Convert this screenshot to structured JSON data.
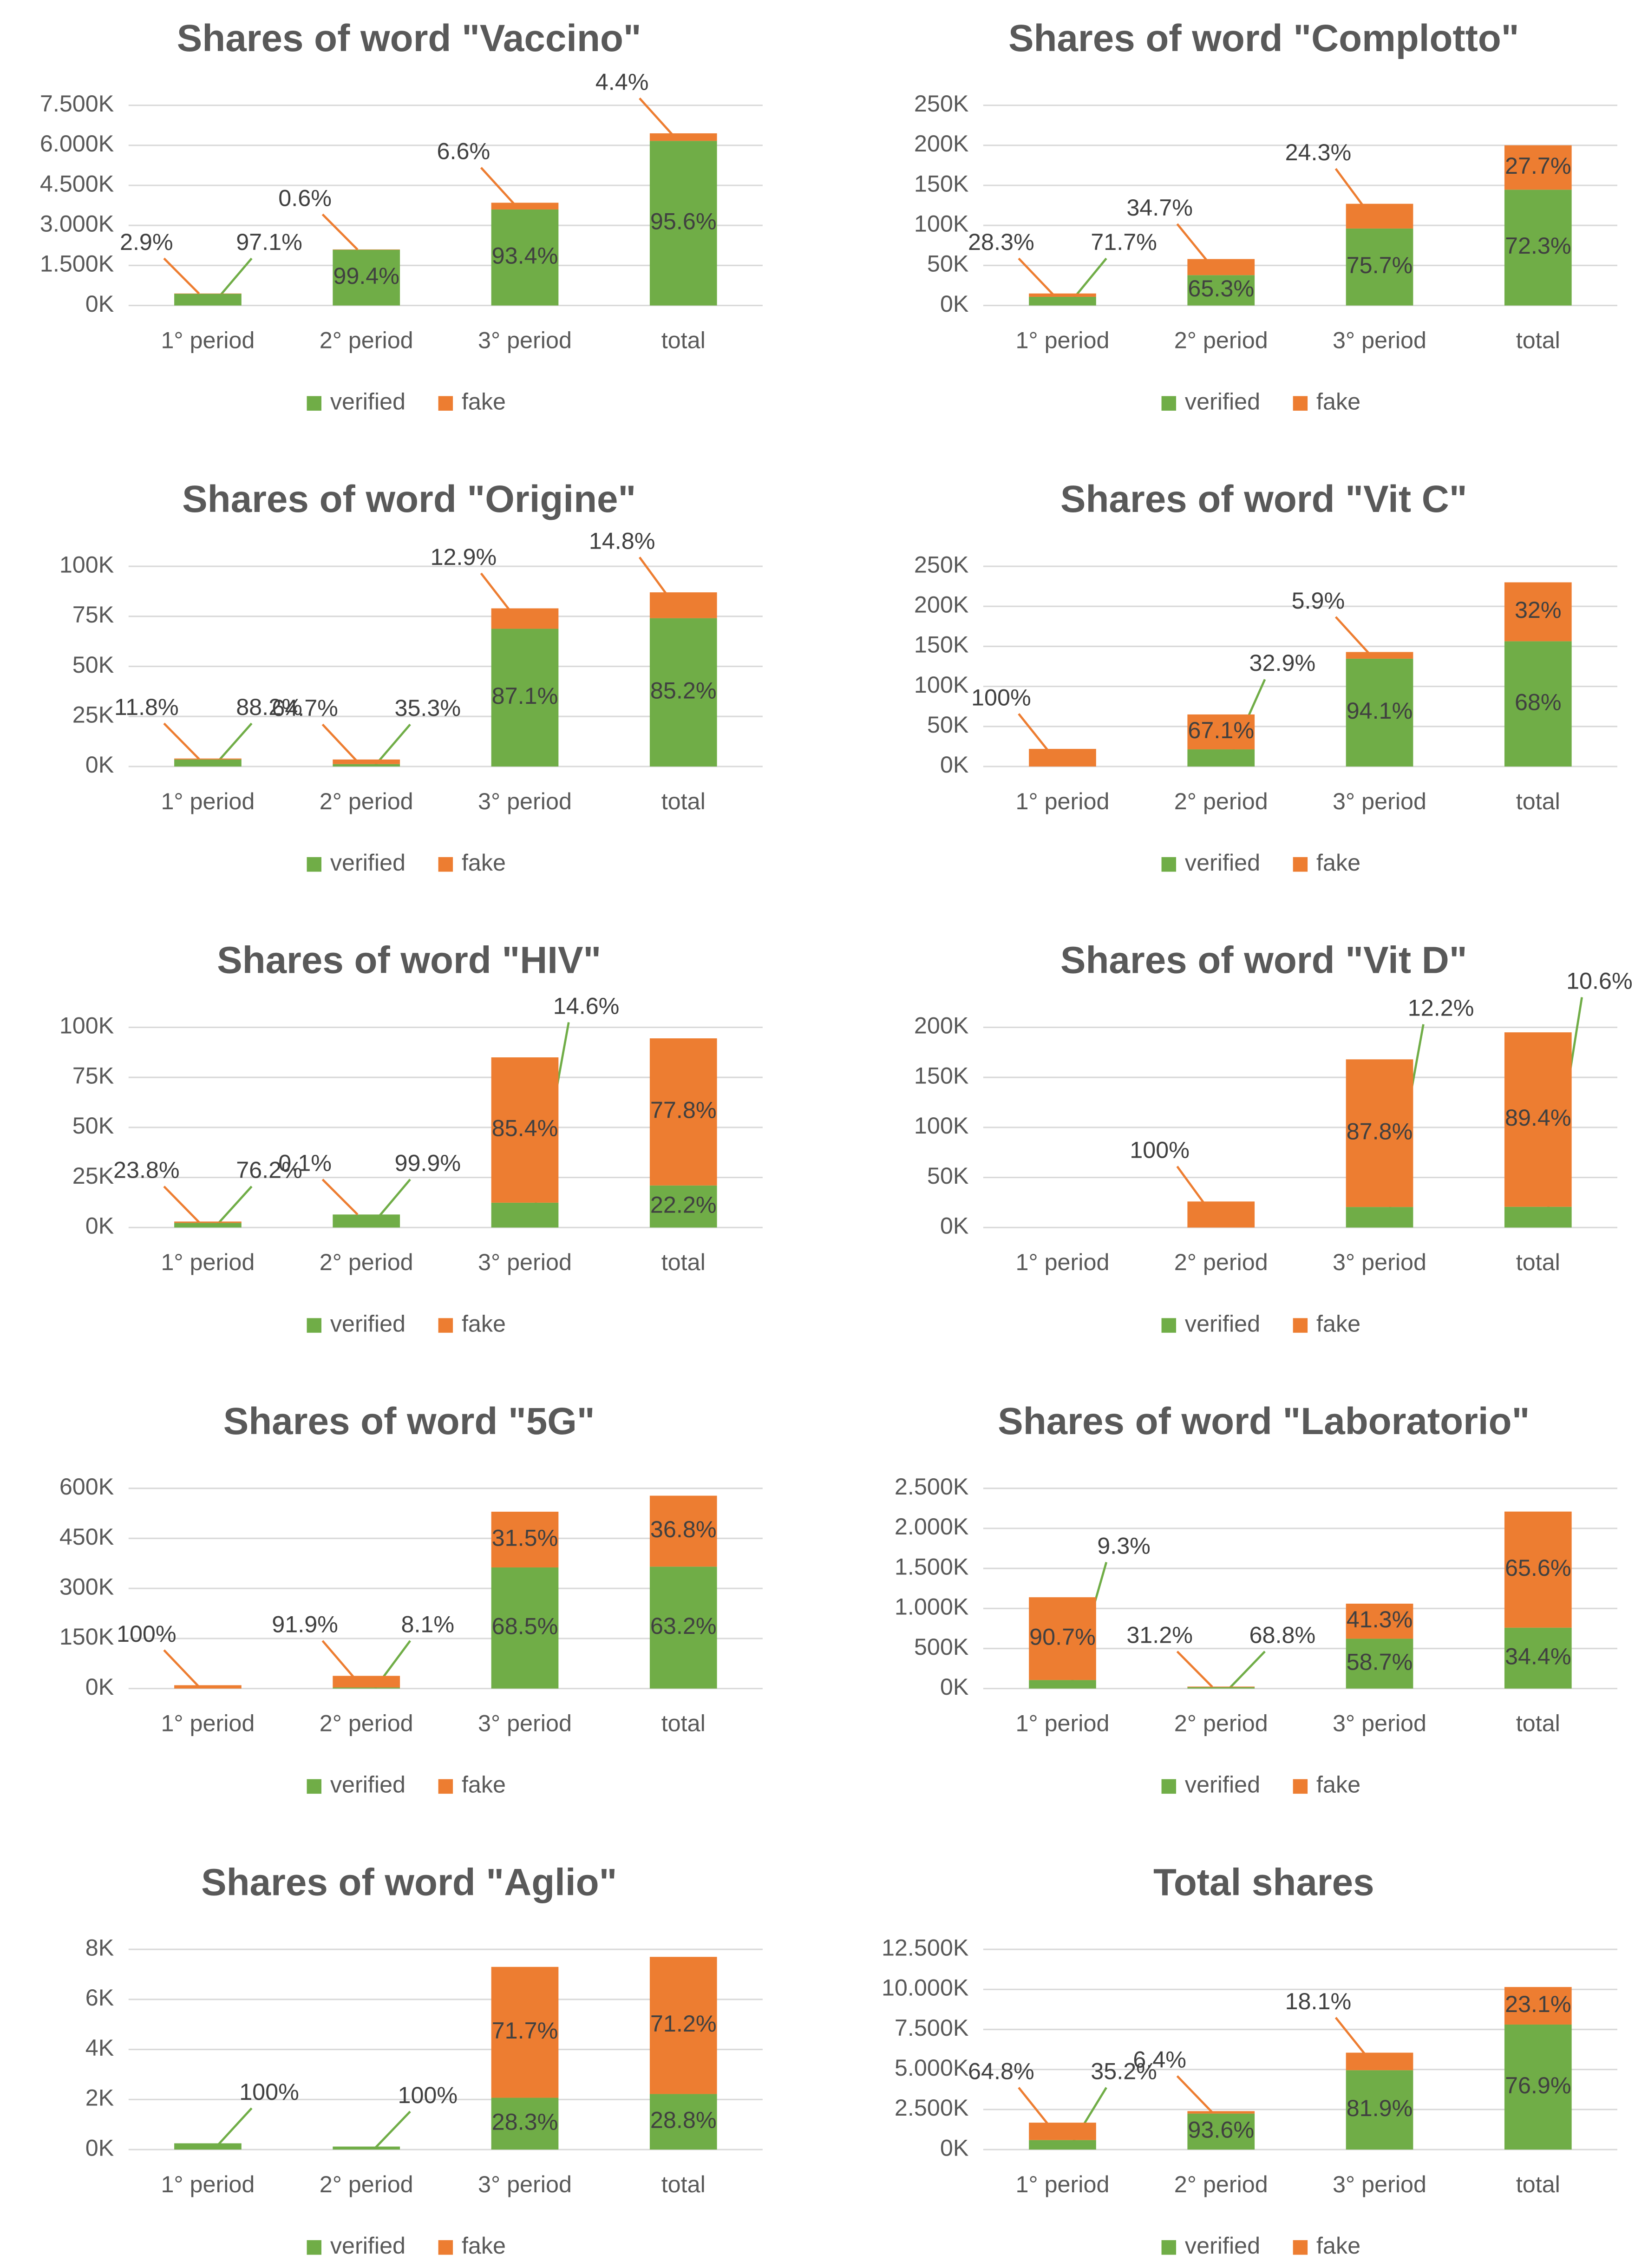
{
  "chart_data": [
    {
      "type": "bar",
      "stacked": true,
      "title": "Shares of word \"Vaccino\"",
      "categories": [
        "1° period",
        "2° period",
        "3° period",
        "total"
      ],
      "series": [
        {
          "name": "verified",
          "color": "#70ad47",
          "values": [
            437,
            2087,
            3596,
            6166
          ],
          "percent_labels": [
            "97.1%",
            "99.4%",
            "93.4%",
            "95.6%"
          ]
        },
        {
          "name": "fake",
          "color": "#ed7d31",
          "values": [
            13,
            13,
            254,
            284
          ],
          "percent_labels": [
            "2.9%",
            "0.6%",
            "6.6%",
            "4.4%"
          ]
        }
      ],
      "ylim": [
        0,
        7500
      ],
      "yticks": [
        {
          "value": 0,
          "label": "0K"
        },
        {
          "value": 1500,
          "label": "1.500K"
        },
        {
          "value": 3000,
          "label": "3.000K"
        },
        {
          "value": 4500,
          "label": "4.500K"
        },
        {
          "value": 6000,
          "label": "6.000K"
        },
        {
          "value": 7500,
          "label": "7.500K"
        }
      ],
      "grid": true,
      "legend": "bottom"
    },
    {
      "type": "bar",
      "stacked": true,
      "title": "Shares of word \"Complotto\"",
      "categories": [
        "1° period",
        "2° period",
        "3° period",
        "total"
      ],
      "series": [
        {
          "name": "verified",
          "color": "#70ad47",
          "values": [
            10.8,
            37.9,
            96.1,
            144.6
          ],
          "percent_labels": [
            "71.7%",
            "65.3%",
            "75.7%",
            "72.3%"
          ]
        },
        {
          "name": "fake",
          "color": "#ed7d31",
          "values": [
            4.2,
            20.1,
            30.9,
            55.4
          ],
          "percent_labels": [
            "28.3%",
            "34.7%",
            "24.3%",
            "27.7%"
          ]
        }
      ],
      "ylim": [
        0,
        250
      ],
      "yticks": [
        {
          "value": 0,
          "label": "0K"
        },
        {
          "value": 50,
          "label": "50K"
        },
        {
          "value": 100,
          "label": "100K"
        },
        {
          "value": 150,
          "label": "150K"
        },
        {
          "value": 200,
          "label": "200K"
        },
        {
          "value": 250,
          "label": "250K"
        }
      ],
      "grid": true,
      "legend": "bottom"
    },
    {
      "type": "bar",
      "stacked": true,
      "title": "Shares of word \"Origine\"",
      "categories": [
        "1° period",
        "2° period",
        "3° period",
        "total"
      ],
      "series": [
        {
          "name": "verified",
          "color": "#70ad47",
          "values": [
            3.5,
            1.2,
            68.8,
            74.1
          ],
          "percent_labels": [
            "88.2%",
            "35.3%",
            "87.1%",
            "85.2%"
          ]
        },
        {
          "name": "fake",
          "color": "#ed7d31",
          "values": [
            0.5,
            2.3,
            10.2,
            12.9
          ],
          "percent_labels": [
            "11.8%",
            "64.7%",
            "12.9%",
            "14.8%"
          ]
        }
      ],
      "ylim": [
        0,
        100
      ],
      "yticks": [
        {
          "value": 0,
          "label": "0K"
        },
        {
          "value": 25,
          "label": "25K"
        },
        {
          "value": 50,
          "label": "50K"
        },
        {
          "value": 75,
          "label": "75K"
        },
        {
          "value": 100,
          "label": "100K"
        }
      ],
      "grid": true,
      "legend": "bottom"
    },
    {
      "type": "bar",
      "stacked": true,
      "title": "Shares of word \"Vit C\"",
      "categories": [
        "1° period",
        "2° period",
        "3° period",
        "total"
      ],
      "series": [
        {
          "name": "verified",
          "color": "#70ad47",
          "values": [
            0,
            21.4,
            134.6,
            156.4
          ],
          "percent_labels": [
            null,
            "32.9%",
            "94.1%",
            "68%"
          ]
        },
        {
          "name": "fake",
          "color": "#ed7d31",
          "values": [
            22,
            43.6,
            8.4,
            73.6
          ],
          "percent_labels": [
            "100%",
            "67.1%",
            "5.9%",
            "32%"
          ]
        }
      ],
      "ylim": [
        0,
        250
      ],
      "yticks": [
        {
          "value": 0,
          "label": "0K"
        },
        {
          "value": 50,
          "label": "50K"
        },
        {
          "value": 100,
          "label": "100K"
        },
        {
          "value": 150,
          "label": "150K"
        },
        {
          "value": 200,
          "label": "200K"
        },
        {
          "value": 250,
          "label": "250K"
        }
      ],
      "grid": true,
      "legend": "bottom"
    },
    {
      "type": "bar",
      "stacked": true,
      "title": "Shares of word \"HIV\"",
      "categories": [
        "1° period",
        "2° period",
        "3° period",
        "total"
      ],
      "series": [
        {
          "name": "verified",
          "color": "#70ad47",
          "values": [
            2.3,
            6.5,
            12.4,
            21
          ],
          "percent_labels": [
            "76.2%",
            "99.9%",
            "14.6%",
            "22.2%"
          ]
        },
        {
          "name": "fake",
          "color": "#ed7d31",
          "values": [
            0.7,
            0.0065,
            72.6,
            73.5
          ],
          "percent_labels": [
            "23.8%",
            "0.1%",
            "85.4%",
            "77.8%"
          ]
        }
      ],
      "ylim": [
        0,
        100
      ],
      "yticks": [
        {
          "value": 0,
          "label": "0K"
        },
        {
          "value": 25,
          "label": "25K"
        },
        {
          "value": 50,
          "label": "50K"
        },
        {
          "value": 75,
          "label": "75K"
        },
        {
          "value": 100,
          "label": "100K"
        }
      ],
      "grid": true,
      "legend": "bottom"
    },
    {
      "type": "bar",
      "stacked": true,
      "title": "Shares of word \"Vit D\"",
      "categories": [
        "1° period",
        "2° period",
        "3° period",
        "total"
      ],
      "series": [
        {
          "name": "verified",
          "color": "#70ad47",
          "values": [
            0,
            0,
            20.5,
            20.7
          ],
          "percent_labels": [
            null,
            null,
            "12.2%",
            "10.6%"
          ]
        },
        {
          "name": "fake",
          "color": "#ed7d31",
          "values": [
            0,
            26,
            147.5,
            174.3
          ],
          "percent_labels": [
            null,
            "100%",
            "87.8%",
            "89.4%"
          ]
        }
      ],
      "ylim": [
        0,
        200
      ],
      "yticks": [
        {
          "value": 0,
          "label": "0K"
        },
        {
          "value": 50,
          "label": "50K"
        },
        {
          "value": 100,
          "label": "100K"
        },
        {
          "value": 150,
          "label": "150K"
        },
        {
          "value": 200,
          "label": "200K"
        }
      ],
      "grid": true,
      "legend": "bottom"
    },
    {
      "type": "bar",
      "stacked": true,
      "title": "Shares of word \"5G\"",
      "categories": [
        "1° period",
        "2° period",
        "3° period",
        "total"
      ],
      "series": [
        {
          "name": "verified",
          "color": "#70ad47",
          "values": [
            0,
            3.1,
            363,
            365.3
          ],
          "percent_labels": [
            null,
            "8.1%",
            "68.5%",
            "63.2%"
          ]
        },
        {
          "name": "fake",
          "color": "#ed7d31",
          "values": [
            10,
            34.9,
            167,
            212.7
          ],
          "percent_labels": [
            "100%",
            "91.9%",
            "31.5%",
            "36.8%"
          ]
        }
      ],
      "ylim": [
        0,
        600
      ],
      "yticks": [
        {
          "value": 0,
          "label": "0K"
        },
        {
          "value": 150,
          "label": "150K"
        },
        {
          "value": 300,
          "label": "300K"
        },
        {
          "value": 450,
          "label": "450K"
        },
        {
          "value": 600,
          "label": "600K"
        }
      ],
      "grid": true,
      "legend": "bottom"
    },
    {
      "type": "bar",
      "stacked": true,
      "title": "Shares of word \"Laboratorio\"",
      "categories": [
        "1° period",
        "2° period",
        "3° period",
        "total"
      ],
      "series": [
        {
          "name": "verified",
          "color": "#70ad47",
          "values": [
            106,
            17.2,
            622,
            760
          ],
          "percent_labels": [
            "9.3%",
            "68.8%",
            "58.7%",
            "34.4%"
          ]
        },
        {
          "name": "fake",
          "color": "#ed7d31",
          "values": [
            1034,
            7.8,
            438,
            1450
          ],
          "percent_labels": [
            "90.7%",
            "31.2%",
            "41.3%",
            "65.6%"
          ]
        }
      ],
      "ylim": [
        0,
        2500
      ],
      "yticks": [
        {
          "value": 0,
          "label": "0K"
        },
        {
          "value": 500,
          "label": "500K"
        },
        {
          "value": 1000,
          "label": "1.000K"
        },
        {
          "value": 1500,
          "label": "1.500K"
        },
        {
          "value": 2000,
          "label": "2.000K"
        },
        {
          "value": 2500,
          "label": "2.500K"
        }
      ],
      "grid": true,
      "legend": "bottom"
    },
    {
      "type": "bar",
      "stacked": true,
      "title": "Shares of word \"Aglio\"",
      "categories": [
        "1° period",
        "2° period",
        "3° period",
        "total"
      ],
      "series": [
        {
          "name": "verified",
          "color": "#70ad47",
          "values": [
            0.25,
            0.12,
            2.07,
            2.22
          ],
          "percent_labels": [
            "100%",
            "100%",
            "28.3%",
            "28.8%"
          ]
        },
        {
          "name": "fake",
          "color": "#ed7d31",
          "values": [
            0,
            0,
            5.23,
            5.48
          ],
          "percent_labels": [
            null,
            null,
            "71.7%",
            "71.2%"
          ]
        }
      ],
      "ylim": [
        0,
        8
      ],
      "yticks": [
        {
          "value": 0,
          "label": "0K"
        },
        {
          "value": 2,
          "label": "2K"
        },
        {
          "value": 4,
          "label": "4K"
        },
        {
          "value": 6,
          "label": "6K"
        },
        {
          "value": 8,
          "label": "8K"
        }
      ],
      "grid": true,
      "legend": "bottom"
    },
    {
      "type": "bar",
      "stacked": true,
      "title": "Total shares",
      "categories": [
        "1° period",
        "2° period",
        "3° period",
        "total"
      ],
      "series": [
        {
          "name": "verified",
          "color": "#70ad47",
          "values": [
            591,
            2246,
            4955,
            7805
          ],
          "percent_labels": [
            "35.2%",
            "93.6%",
            "81.9%",
            "76.9%"
          ]
        },
        {
          "name": "fake",
          "color": "#ed7d31",
          "values": [
            1089,
            154,
            1095,
            2345
          ],
          "percent_labels": [
            "64.8%",
            "6.4%",
            "18.1%",
            "23.1%"
          ]
        }
      ],
      "ylim": [
        0,
        12500
      ],
      "yticks": [
        {
          "value": 0,
          "label": "0K"
        },
        {
          "value": 2500,
          "label": "2.500K"
        },
        {
          "value": 5000,
          "label": "5.000K"
        },
        {
          "value": 7500,
          "label": "7.500K"
        },
        {
          "value": 10000,
          "label": "10.000K"
        },
        {
          "value": 12500,
          "label": "12.500K"
        }
      ],
      "grid": true,
      "legend": "bottom"
    }
  ]
}
